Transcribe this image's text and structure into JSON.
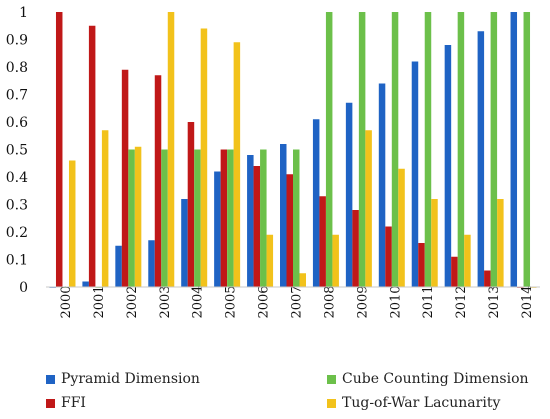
{
  "chart_data": {
    "type": "bar",
    "categories": [
      "2000",
      "2001",
      "2002",
      "2003",
      "2004",
      "2005",
      "2006",
      "2007",
      "2008",
      "2009",
      "2010",
      "2011",
      "2012",
      "2013",
      "2014"
    ],
    "ylim": [
      0,
      1
    ],
    "yticks": [
      "0",
      "0.1",
      "0.2",
      "0.3",
      "0.4",
      "0.5",
      "0.6",
      "0.7",
      "0.8",
      "0.9",
      "1"
    ],
    "grid": false,
    "legend_position": "bottom",
    "series": [
      {
        "name": "Pyramid Dimension",
        "color": "#1F63C4",
        "values": [
          0.0,
          0.02,
          0.15,
          0.17,
          0.32,
          0.42,
          0.48,
          0.52,
          0.61,
          0.67,
          0.74,
          0.82,
          0.88,
          0.93,
          1.0
        ]
      },
      {
        "name": "FFI",
        "color": "#C01818",
        "values": [
          1.0,
          0.95,
          0.79,
          0.77,
          0.6,
          0.5,
          0.44,
          0.41,
          0.33,
          0.28,
          0.22,
          0.16,
          0.11,
          0.06,
          0.0
        ]
      },
      {
        "name": "Cube Counting Dimension",
        "color": "#6CC04A",
        "values": [
          0.0,
          0.0,
          0.5,
          0.5,
          0.5,
          0.5,
          0.5,
          0.5,
          1.0,
          1.0,
          1.0,
          1.0,
          1.0,
          1.0,
          1.0
        ]
      },
      {
        "name": "Tug-of-War Lacunarity",
        "color": "#F2C21B",
        "values": [
          0.46,
          0.57,
          0.51,
          1.0,
          0.94,
          0.89,
          0.19,
          0.05,
          0.19,
          0.57,
          0.43,
          0.32,
          0.19,
          0.32,
          0.0
        ]
      }
    ],
    "legend": [
      {
        "label": "Pyramid Dimension",
        "color": "#1F63C4"
      },
      {
        "label": "Cube Counting Dimension",
        "color": "#6CC04A"
      },
      {
        "label": "FFI",
        "color": "#C01818"
      },
      {
        "label": "Tug-of-War Lacunarity",
        "color": "#F2C21B"
      }
    ]
  }
}
